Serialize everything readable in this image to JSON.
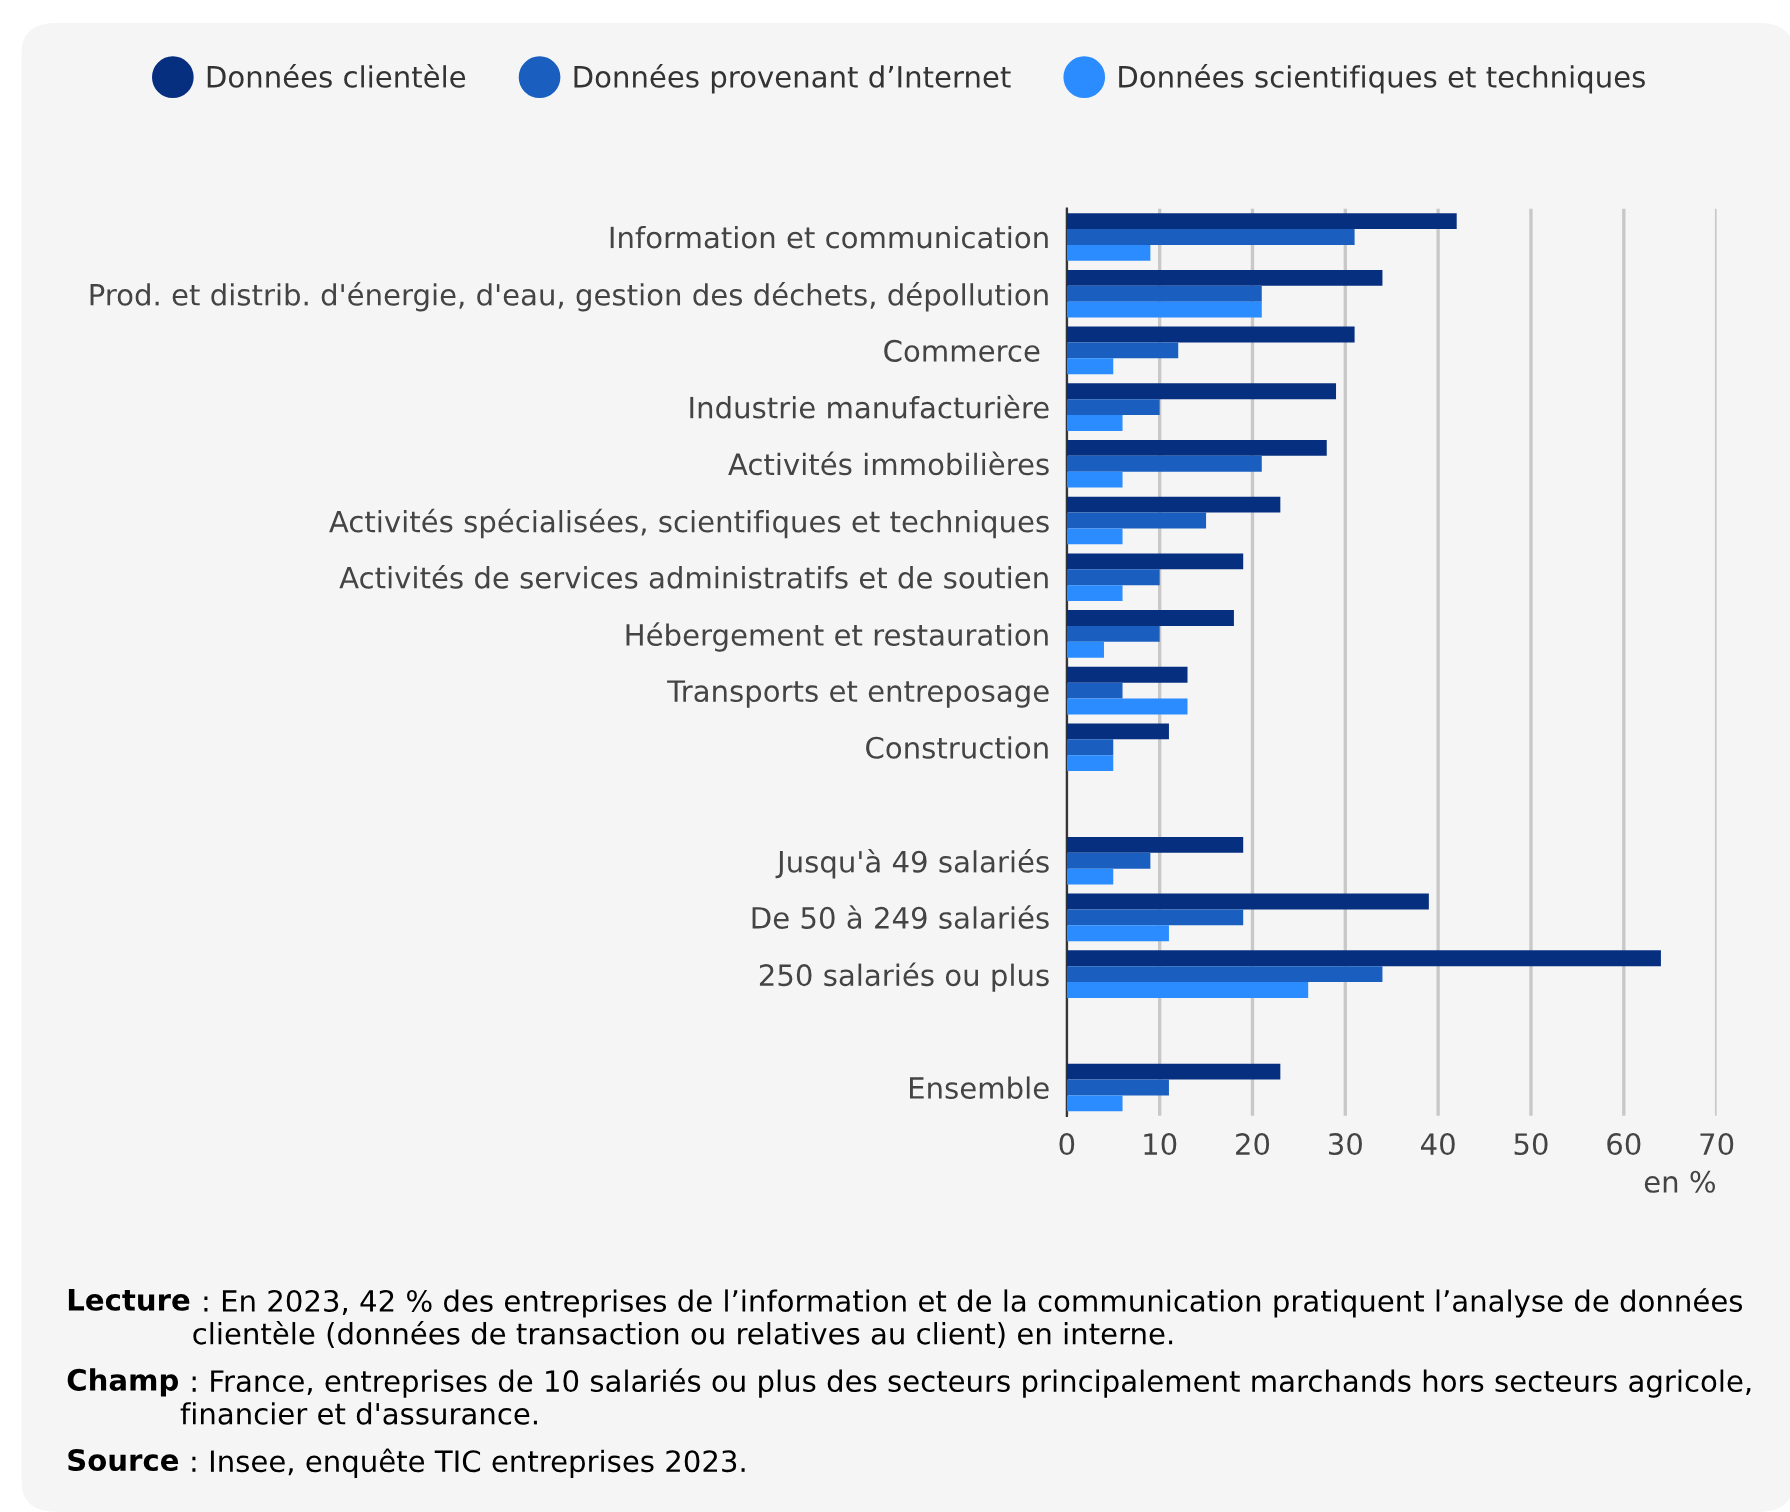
{
  "chart_data": {
    "type": "bar",
    "orientation": "horizontal",
    "categories": [
      "Information et communication",
      "Prod. et distrib. d'énergie, d'eau, gestion des déchets, dépollution",
      "Commerce ",
      "Industrie manufacturière",
      "Activités immobilières",
      "Activités spécialisées, scientifiques et techniques",
      "Activités de services administratifs et de soutien",
      "Hébergement et restauration",
      "Transports et entreposage",
      "Construction",
      null,
      "Jusqu'à 49 salariés",
      "De 50 à 249 salariés",
      "250 salariés ou plus",
      null,
      "Ensemble"
    ],
    "series": [
      {
        "name": "Données clientèle",
        "color": "#062f80",
        "values": [
          42,
          34,
          31,
          29,
          28,
          23,
          19,
          18,
          13,
          11,
          null,
          19,
          39,
          64,
          null,
          23
        ]
      },
      {
        "name": "Données provenant d’Internet",
        "color": "#1a5fc0",
        "values": [
          31,
          21,
          12,
          10,
          21,
          15,
          10,
          10,
          6,
          5,
          null,
          9,
          19,
          34,
          null,
          11
        ]
      },
      {
        "name": "Données scientifiques et techniques",
        "color": "#2a8cff",
        "values": [
          9,
          21,
          5,
          6,
          6,
          6,
          6,
          4,
          13,
          5,
          null,
          5,
          11,
          26,
          null,
          6
        ]
      }
    ],
    "xlim": [
      0,
      70
    ],
    "xticks": [
      0,
      10,
      20,
      30,
      40,
      50,
      60,
      70
    ],
    "xlabel": "en %",
    "grid": "x",
    "legend": "top",
    "marker": "circle",
    "annotations": [
      "Lecture : En 2023, 42 % des entreprises de l’information et de la communication pratiquent l’analyse de données clientèle (données de transaction ou relatives au client) en interne.",
      "Champ : France, entreprises de 10 salariés ou plus des secteurs principalement marchands hors secteurs agricole, financier et d'assurance.",
      "Source : Insee, enquête TIC entreprises 2023."
    ]
  }
}
